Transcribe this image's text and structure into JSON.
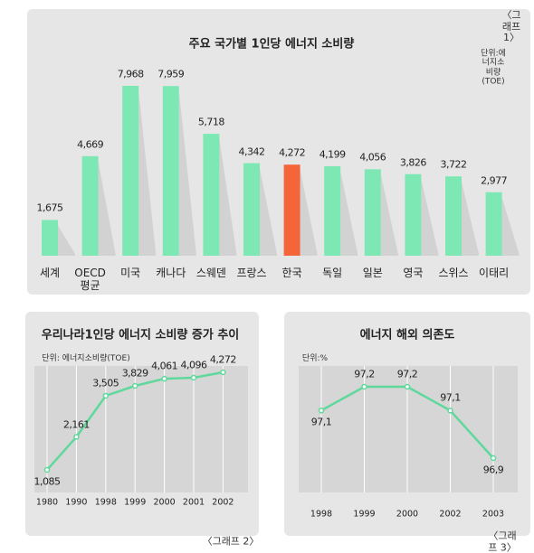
{
  "chart_data": [
    {
      "type": "bar",
      "caption": "〈그래프 1〉",
      "title": "주요 국가별 1인당 에너지 소비량",
      "unit": "단위:에너지소비량(TOE)",
      "categories": [
        "세계",
        "OECD\n평균",
        "미국",
        "캐나다",
        "스웨덴",
        "프랑스",
        "한국",
        "독일",
        "일본",
        "영국",
        "스위스",
        "이태리"
      ],
      "values": [
        1675,
        4669,
        7968,
        7959,
        5718,
        4342,
        4272,
        4199,
        4056,
        3826,
        3722,
        2977
      ],
      "value_labels": [
        "1,675",
        "4,669",
        "7,968",
        "7,959",
        "5,718",
        "4,342",
        "4,272",
        "4,199",
        "4,056",
        "3,826",
        "3,722",
        "2,977"
      ],
      "colors": [
        "#7ee8b5",
        "#7ee8b5",
        "#7ee8b5",
        "#7ee8b5",
        "#7ee8b5",
        "#7ee8b5",
        "#f4663a",
        "#7ee8b5",
        "#7ee8b5",
        "#7ee8b5",
        "#7ee8b5",
        "#7ee8b5"
      ]
    },
    {
      "type": "line",
      "caption": "〈그래프 2〉",
      "title": "우리나라1인당 에너지 소비량 증가 추이",
      "unit": "단위: 에너지소비량(TOE)",
      "categories": [
        "1980",
        "1990",
        "1998",
        "1999",
        "2000",
        "2001",
        "2002"
      ],
      "values": [
        1085,
        2161,
        3505,
        3829,
        4061,
        4096,
        4272
      ],
      "value_labels": [
        "1,085",
        "2,161",
        "3,505",
        "3,829",
        "4,061",
        "4,096",
        "4,272"
      ],
      "color": "#5fd89c"
    },
    {
      "type": "line",
      "caption": "〈그래프 3〉",
      "title": "에너지 해외 의존도",
      "unit": "단위:%",
      "categories": [
        "1998",
        "1999",
        "2000",
        "2002",
        "2003"
      ],
      "values": [
        97.1,
        97.2,
        97.2,
        97.1,
        96.9
      ],
      "value_labels": [
        "97,1",
        "97,2",
        "97,2",
        "97,1",
        "96,9"
      ],
      "color": "#5fd89c"
    }
  ]
}
